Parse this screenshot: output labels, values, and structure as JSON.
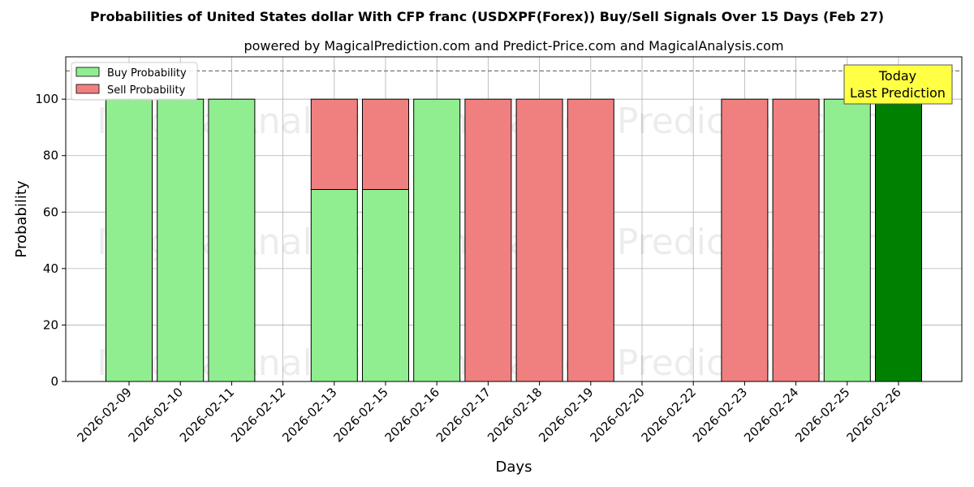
{
  "chart_data": {
    "type": "bar",
    "stacked": true,
    "title": "Probabilities of United States dollar With CFP franc (USDXPF(Forex)) Buy/Sell Signals Over 15 Days (Feb 27)",
    "subtitle": "powered by MagicalPrediction.com and Predict-Price.com and MagicalAnalysis.com",
    "xlabel": "Days",
    "ylabel": "Probability",
    "ylim": [
      0,
      115
    ],
    "yticks": [
      0,
      20,
      40,
      60,
      80,
      100
    ],
    "reference_line": 110,
    "grid": true,
    "legend_position": "top-left",
    "categories": [
      "2026-02-09",
      "2026-02-10",
      "2026-02-11",
      "2026-02-12",
      "2026-02-13",
      "2026-02-15",
      "2026-02-16",
      "2026-02-17",
      "2026-02-18",
      "2026-02-19",
      "2026-02-20",
      "2026-02-22",
      "2026-02-23",
      "2026-02-24",
      "2026-02-25",
      "2026-02-26"
    ],
    "series": [
      {
        "name": "Buy Probability",
        "color": "#90ee90",
        "values": [
          100,
          100,
          100,
          0,
          68,
          68,
          100,
          0,
          0,
          0,
          0,
          0,
          0,
          0,
          100,
          100
        ]
      },
      {
        "name": "Sell Probability",
        "color": "#f08080",
        "values": [
          0,
          0,
          0,
          0,
          32,
          32,
          0,
          100,
          100,
          100,
          0,
          0,
          100,
          100,
          0,
          0
        ]
      }
    ],
    "highlight": {
      "category": "2026-02-26",
      "color": "#008000"
    },
    "annotation": {
      "line1": "Today",
      "line2": "Last Prediction",
      "color": "#ffff44"
    },
    "watermarks": [
      "MagicalAnalysis.com",
      "Magica Prediction.com"
    ]
  }
}
